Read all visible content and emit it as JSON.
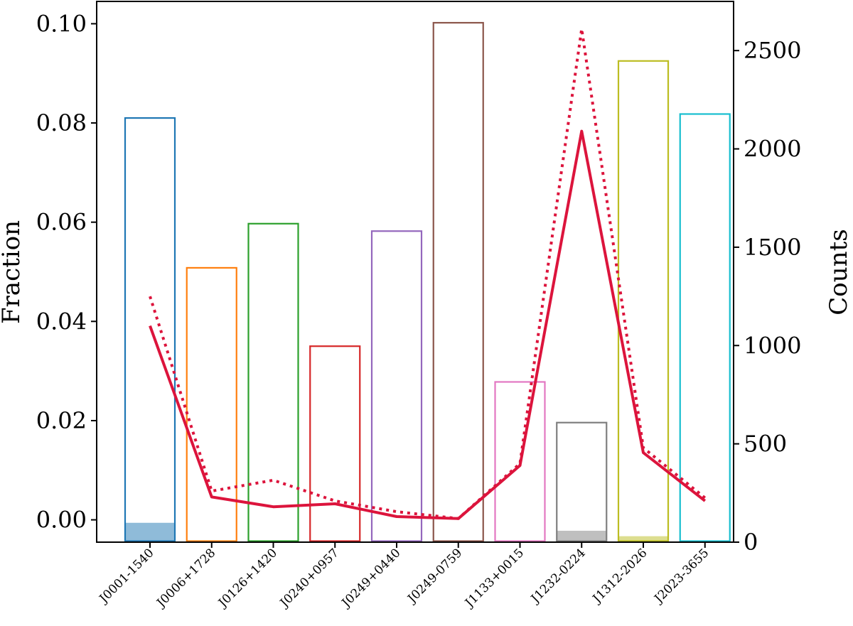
{
  "chart_data": {
    "type": "bar",
    "categories": [
      "J0001-1540",
      "J0006+1728",
      "J0126+1420",
      "J0240+0957",
      "J0249+0440",
      "J0249-0759",
      "J1133+0015",
      "J1232-0224",
      "J1312-2026",
      "J2023-3655"
    ],
    "colors": [
      "#1f77b4",
      "#ff7f0e",
      "#2ca02c",
      "#d62728",
      "#9467bd",
      "#8c564b",
      "#e377c2",
      "#7f7f7f",
      "#bcbd22",
      "#17becf"
    ],
    "left_axis": {
      "label": "Fraction",
      "ylim": [
        -0.0045,
        0.1045
      ],
      "ticks": [
        0.0,
        0.02,
        0.04,
        0.06,
        0.08,
        0.1
      ],
      "tick_labels": [
        "0.00",
        "0.02",
        "0.04",
        "0.06",
        "0.08",
        "0.10"
      ]
    },
    "right_axis": {
      "label": "Counts",
      "ylim": [
        0,
        2750
      ],
      "ticks": [
        0,
        500,
        1000,
        1500,
        2000,
        2500
      ],
      "tick_labels": [
        "0",
        "500",
        "1000",
        "1500",
        "2000",
        "2500"
      ]
    },
    "series": [
      {
        "name": "Fraction (outline)",
        "kind": "bar-outline",
        "axis": "left",
        "values": [
          0.081,
          0.0508,
          0.0597,
          0.035,
          0.0582,
          0.1002,
          0.0278,
          0.0196,
          0.0925,
          0.0818
        ]
      },
      {
        "name": "Fraction (filled)",
        "kind": "bar-filled",
        "axis": "left",
        "values": [
          -0.0006,
          -0.0044,
          -0.0043,
          -0.0045,
          -0.0045,
          -0.0045,
          -0.0045,
          -0.0022,
          -0.0033,
          -0.0045
        ]
      },
      {
        "name": "Counts (solid)",
        "kind": "line",
        "style": "solid",
        "color": "#dc143c",
        "axis": "right",
        "values": [
          1100,
          230,
          180,
          195,
          130,
          120,
          390,
          2090,
          455,
          210
        ]
      },
      {
        "name": "Counts (dotted)",
        "kind": "line",
        "style": "dotted",
        "color": "#dc143c",
        "axis": "right",
        "values": [
          1250,
          260,
          315,
          210,
          155,
          120,
          400,
          2610,
          480,
          225
        ]
      }
    ]
  }
}
